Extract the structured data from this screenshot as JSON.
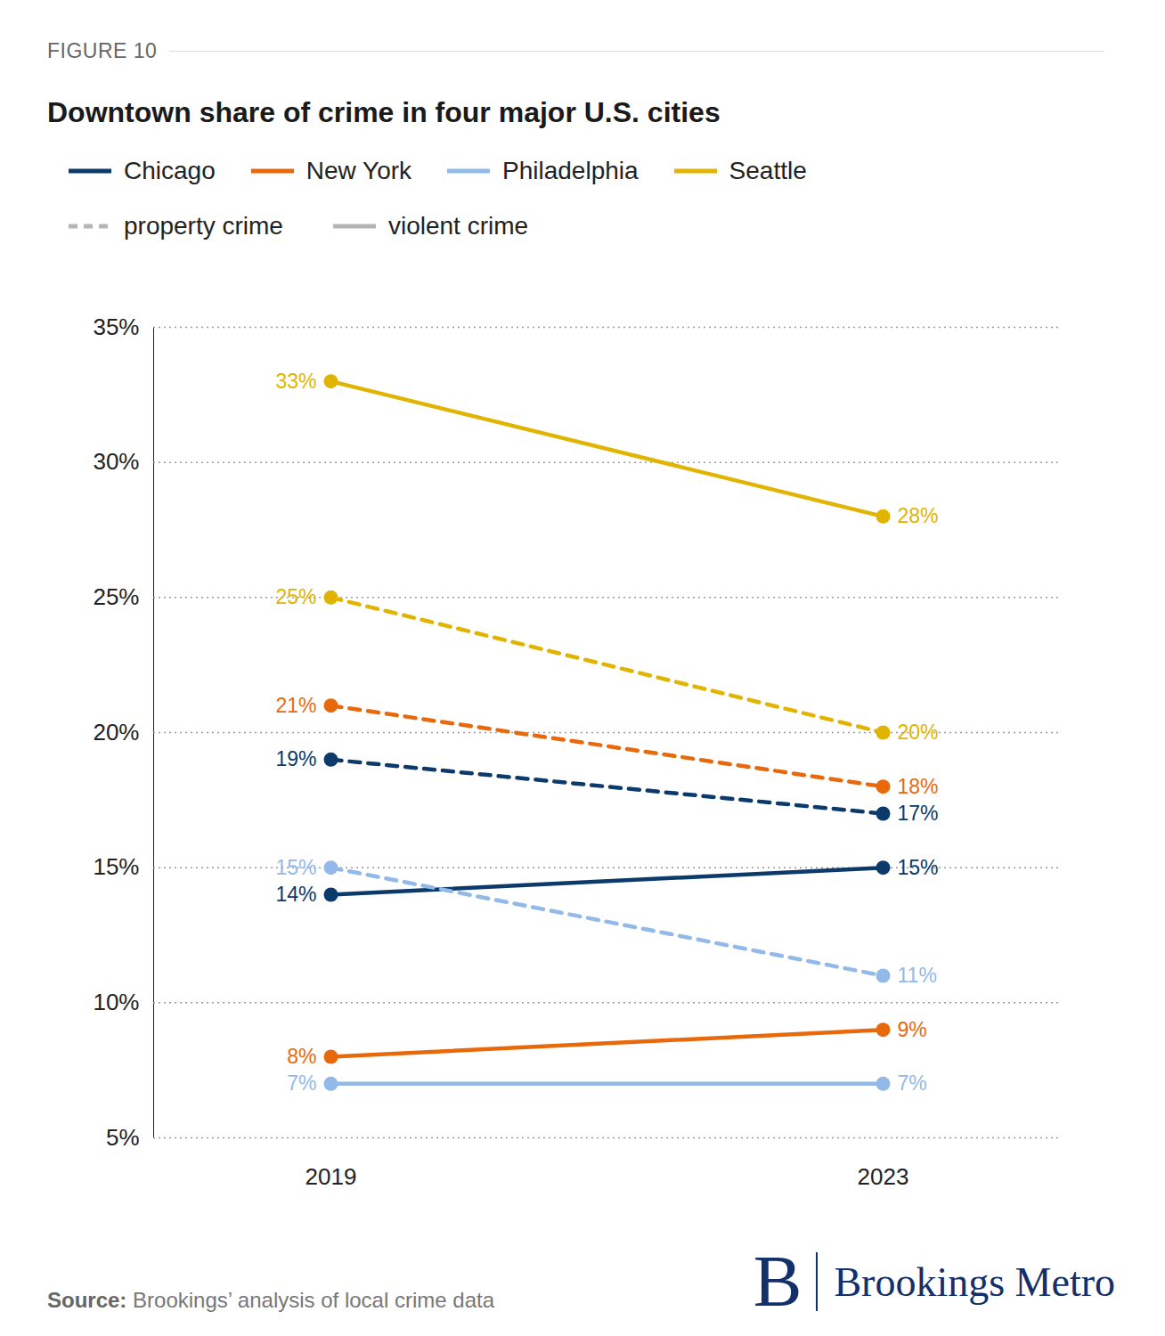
{
  "chart_data": {
    "type": "line",
    "figure_label": "FIGURE 10",
    "title": "Downtown share of crime in four major U.S. cities",
    "x": [
      "2019",
      "2023"
    ],
    "ylim": [
      5,
      35
    ],
    "yticks": [
      {
        "value": 5,
        "label": "5%"
      },
      {
        "value": 10,
        "label": "10%"
      },
      {
        "value": 15,
        "label": "15%"
      },
      {
        "value": 20,
        "label": "20%"
      },
      {
        "value": 25,
        "label": "25%"
      },
      {
        "value": 30,
        "label": "30%"
      },
      {
        "value": 35,
        "label": "35%"
      }
    ],
    "grid": true,
    "data_labels": true,
    "line_styles": [
      {
        "name": "property crime",
        "line_style": "dashed"
      },
      {
        "name": "violent crime",
        "line_style": "solid"
      }
    ],
    "series": [
      {
        "name": "Chicago",
        "color": "#0b3a6b",
        "line_style": "dashed",
        "values": [
          19,
          17
        ],
        "value_labels": [
          "19%",
          "17%"
        ]
      },
      {
        "name": "Chicago",
        "color": "#0b3a6b",
        "line_style": "solid",
        "values": [
          14,
          15
        ],
        "value_labels": [
          "14%",
          "15%"
        ]
      },
      {
        "name": "New York",
        "color": "#e8690c",
        "line_style": "dashed",
        "values": [
          21,
          18
        ],
        "value_labels": [
          "21%",
          "18%"
        ]
      },
      {
        "name": "New York",
        "color": "#e8690c",
        "line_style": "solid",
        "values": [
          8,
          9
        ],
        "value_labels": [
          "8%",
          "9%"
        ]
      },
      {
        "name": "Philadelphia",
        "color": "#92b9e8",
        "line_style": "dashed",
        "values": [
          15,
          11
        ],
        "value_labels": [
          "15%",
          "11%"
        ]
      },
      {
        "name": "Philadelphia",
        "color": "#92b9e8",
        "line_style": "solid",
        "values": [
          7,
          7
        ],
        "value_labels": [
          "7%",
          "7%"
        ]
      },
      {
        "name": "Seattle",
        "color": "#e0b400",
        "line_style": "dashed",
        "values": [
          25,
          20
        ],
        "value_labels": [
          "25%",
          "20%"
        ]
      },
      {
        "name": "Seattle",
        "color": "#e0b400",
        "line_style": "solid",
        "values": [
          33,
          28
        ],
        "value_labels": [
          "33%",
          "28%"
        ]
      }
    ],
    "source_label": "Source:",
    "source": "Brookings’ analysis of local crime data",
    "logo_letter": "B",
    "logo_text": "Brookings Metro"
  }
}
